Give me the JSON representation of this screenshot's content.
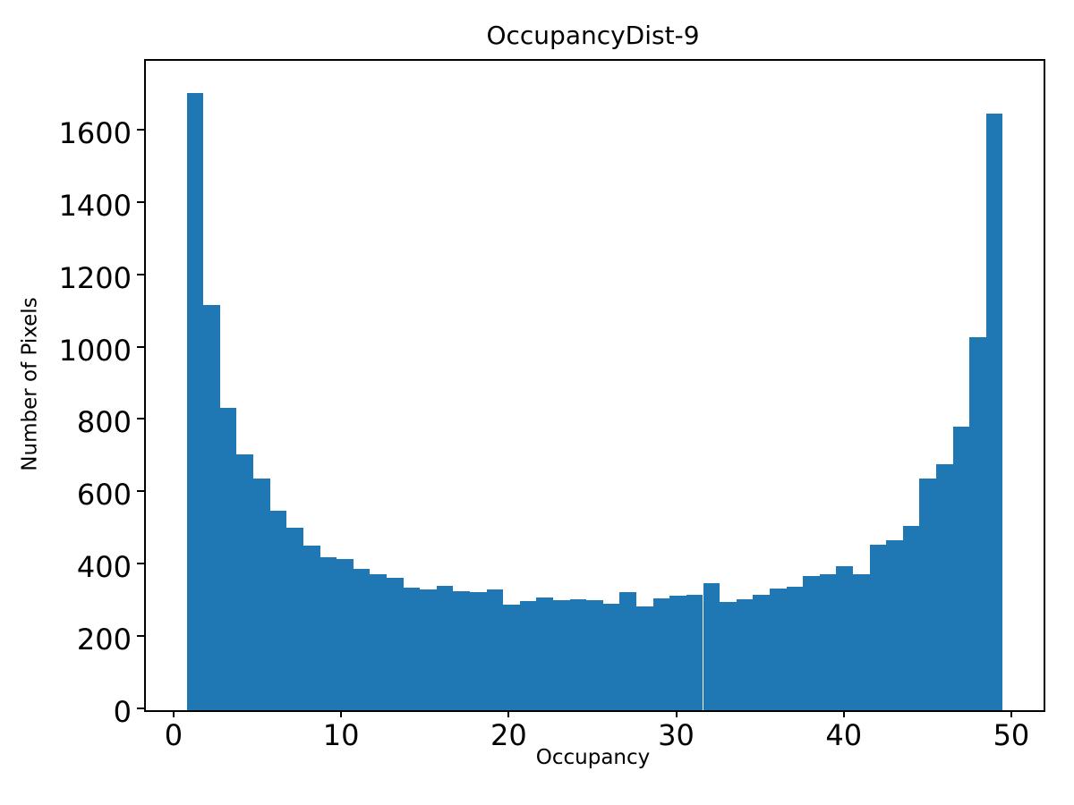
{
  "chart_data": {
    "type": "histogram",
    "title": "OccupancyDist-9",
    "xlabel": "Occupancy",
    "ylabel": "Number of Pixels",
    "bar_color": "#1f77b4",
    "background_color": "#ffffff",
    "grid": false,
    "legend": false,
    "xlim": [
      -1.76,
      51.82
    ],
    "ylim": [
      0,
      1795
    ],
    "xticks": [
      0,
      10,
      20,
      30,
      40,
      50
    ],
    "yticks": [
      0,
      200,
      400,
      600,
      800,
      1000,
      1200,
      1400,
      1600
    ],
    "bins": {
      "start": 0.68,
      "width": 0.994,
      "count": 49
    },
    "counts": [
      1707,
      1120,
      836,
      707,
      640,
      551,
      504,
      455,
      424,
      418,
      391,
      376,
      366,
      338,
      335,
      344,
      330,
      327,
      333,
      292,
      302,
      312,
      303,
      307,
      304,
      295,
      326,
      287,
      310,
      316,
      318,
      350,
      298,
      307,
      320,
      336,
      342,
      370,
      375,
      398,
      377,
      458,
      471,
      509,
      640,
      681,
      784,
      1031,
      1650
    ]
  }
}
